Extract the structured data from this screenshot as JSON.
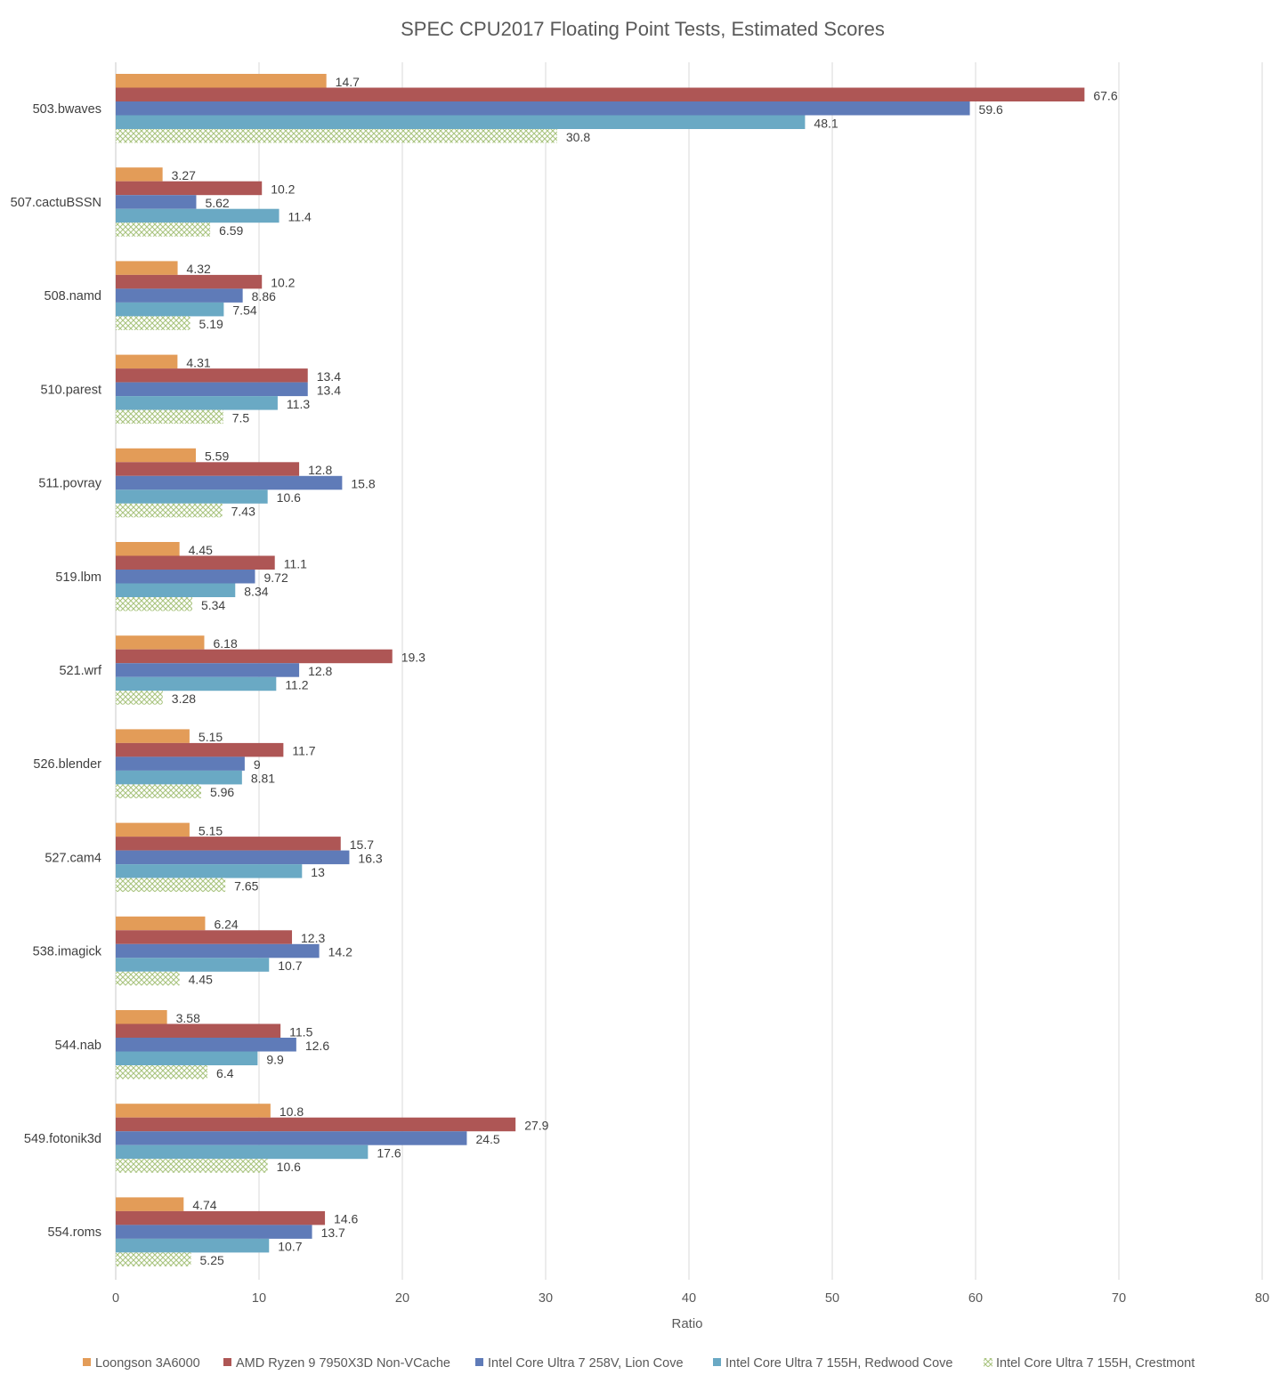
{
  "chart_data": {
    "type": "bar",
    "orientation": "horizontal",
    "title": "SPEC CPU2017 Floating Point Tests, Estimated Scores",
    "xlabel": "Ratio",
    "ylabel": "",
    "xlim": [
      0,
      80
    ],
    "xticks": [
      0,
      10,
      20,
      30,
      40,
      50,
      60,
      70,
      80
    ],
    "grid": true,
    "legend_position": "bottom",
    "categories": [
      "503.bwaves",
      "507.cactuBSSN",
      "508.namd",
      "510.parest",
      "511.povray",
      "519.lbm",
      "521.wrf",
      "526.blender",
      "527.cam4",
      "538.imagick",
      "544.nab",
      "549.fotonik3d",
      "554.roms"
    ],
    "series": [
      {
        "name": "Loongson 3A6000",
        "color": "#e39c58",
        "pattern": "solid",
        "values": [
          14.7,
          3.27,
          4.32,
          4.31,
          5.59,
          4.45,
          6.18,
          5.15,
          5.15,
          6.24,
          3.58,
          10.8,
          4.74
        ]
      },
      {
        "name": "AMD Ryzen 9 7950X3D Non-VCache",
        "color": "#ae5655",
        "pattern": "solid",
        "values": [
          67.6,
          10.2,
          10.2,
          13.4,
          12.8,
          11.1,
          19.3,
          11.7,
          15.7,
          12.3,
          11.5,
          27.9,
          14.6
        ]
      },
      {
        "name": "Intel Core Ultra 7 258V, Lion Cove",
        "color": "#5f7bb8",
        "pattern": "solid",
        "values": [
          59.6,
          5.62,
          8.86,
          13.4,
          15.8,
          9.72,
          12.8,
          9,
          16.3,
          14.2,
          12.6,
          24.5,
          13.7
        ]
      },
      {
        "name": "Intel Core Ultra 7 155H, Redwood Cove",
        "color": "#6aa9c4",
        "pattern": "solid",
        "values": [
          48.1,
          11.4,
          7.54,
          11.3,
          10.6,
          8.34,
          11.2,
          8.81,
          13,
          10.7,
          9.9,
          17.6,
          10.7
        ]
      },
      {
        "name": "Intel Core Ultra 7 155H, Crestmont",
        "color": "#a9c47f",
        "pattern": "hatch",
        "values": [
          30.8,
          6.59,
          5.19,
          7.5,
          7.43,
          5.34,
          3.28,
          5.96,
          7.65,
          4.45,
          6.4,
          10.6,
          5.25
        ]
      }
    ]
  }
}
